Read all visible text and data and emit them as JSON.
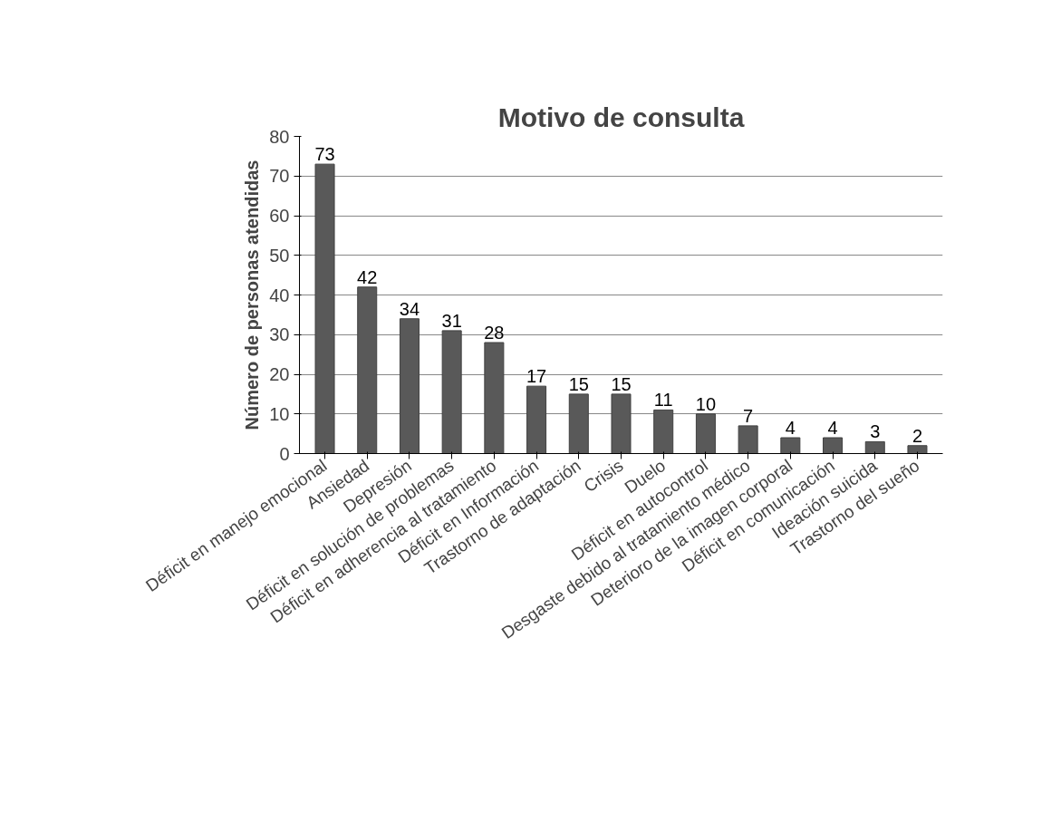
{
  "chart_data": {
    "type": "bar",
    "title": "Motivo de consulta",
    "ylabel": "Número de personas atendidas",
    "categories": [
      "Déficit en manejo emocional",
      "Ansiedad",
      "Depresión",
      "Déficit en solución de problemas",
      "Déficit en adherencia al tratamiento",
      "Déficit en Información",
      "Trastorno de adaptación",
      "Crisis",
      "Duelo",
      "Déficit en autocontrol",
      "Desgaste debido al tratamiento médico",
      "Deterioro de la imagen corporal",
      "Déficit en comunicación",
      "Ideación suicida",
      "Trastorno del sueño"
    ],
    "values": [
      73,
      42,
      34,
      31,
      28,
      17,
      15,
      15,
      11,
      10,
      7,
      4,
      4,
      3,
      2
    ],
    "color": "#595959",
    "ylim": [
      0,
      80
    ],
    "yticks": [
      0,
      10,
      20,
      30,
      40,
      50,
      60,
      70,
      80
    ],
    "grid": "y",
    "data_labels": true
  }
}
